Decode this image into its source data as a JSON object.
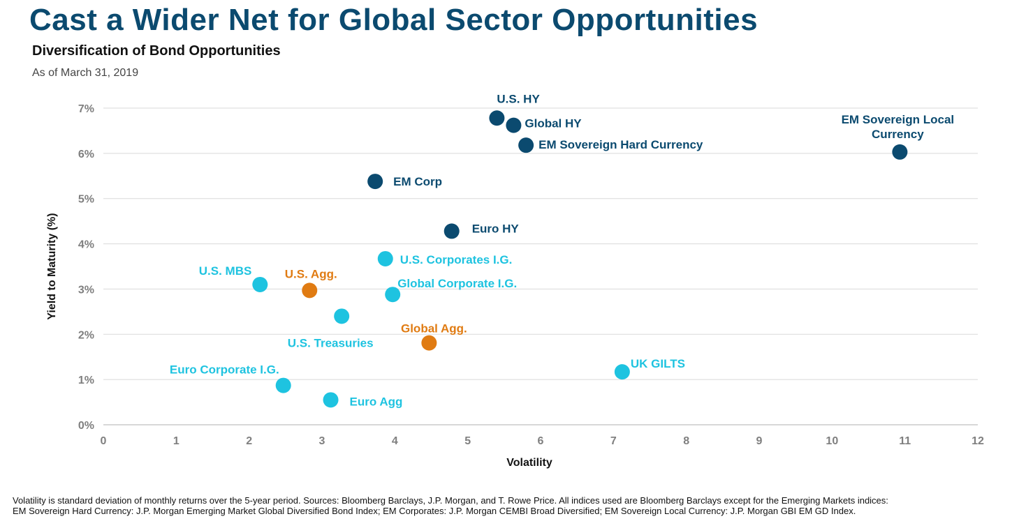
{
  "page": {
    "title": "Cast a Wider Net for Global Sector Opportunities",
    "as_of": "As of March 31, 2019",
    "footnote_line1": "Volatility is standard deviation of monthly returns over the 5-year period. Sources: Bloomberg Barclays, J.P. Morgan, and T. Rowe Price. All indices used are Bloomberg Barclays except for the Emerging Markets indices:",
    "footnote_line2": "EM Sovereign Hard Currency: J.P. Morgan Emerging Market Global Diversified Bond Index; EM Corporates: J.P. Morgan CEMBI Broad Diversified; EM Sovereign Local Currency: J.P. Morgan GBI EM GD Index."
  },
  "colors": {
    "title": "#0b4a6f",
    "dark_navy": "#0b4a6f",
    "cyan": "#1ec3e0",
    "orange": "#e07b12",
    "grid": "#d9d9d9"
  },
  "chart_data": {
    "type": "scatter",
    "title": "Diversification of Bond Opportunities",
    "xlabel": "Volatility",
    "ylabel": "Yield to Maturity (%)",
    "xlim": [
      0,
      12
    ],
    "ylim": [
      0,
      7
    ],
    "x_ticks": [
      0,
      1,
      2,
      3,
      4,
      5,
      6,
      7,
      8,
      9,
      10,
      11,
      12
    ],
    "y_ticks": [
      "0%",
      "1%",
      "2%",
      "3%",
      "4%",
      "5%",
      "6%",
      "7%"
    ],
    "grid": "horizontal",
    "points": [
      {
        "label": "U.S. HY",
        "x": 5.4,
        "y": 6.78,
        "color": "dark_navy"
      },
      {
        "label": "Global HY",
        "x": 5.63,
        "y": 6.62,
        "color": "dark_navy"
      },
      {
        "label": "EM Sovereign Hard Currency",
        "x": 5.8,
        "y": 6.18,
        "color": "dark_navy"
      },
      {
        "label": "EM Sovereign Local Currency",
        "x": 10.93,
        "y": 6.03,
        "color": "dark_navy"
      },
      {
        "label": "EM Corp",
        "x": 3.73,
        "y": 5.38,
        "color": "dark_navy"
      },
      {
        "label": "Euro HY",
        "x": 4.78,
        "y": 4.28,
        "color": "dark_navy"
      },
      {
        "label": "U.S. Corporates I.G.",
        "x": 3.87,
        "y": 3.67,
        "color": "cyan"
      },
      {
        "label": "U.S. MBS",
        "x": 2.15,
        "y": 3.1,
        "color": "cyan"
      },
      {
        "label": "U.S. Agg.",
        "x": 2.83,
        "y": 2.97,
        "color": "orange"
      },
      {
        "label": "Global Corporate I.G.",
        "x": 3.97,
        "y": 2.88,
        "color": "cyan"
      },
      {
        "label": "U.S. Treasuries",
        "x": 3.27,
        "y": 2.4,
        "color": "cyan"
      },
      {
        "label": "Global Agg.",
        "x": 4.47,
        "y": 1.81,
        "color": "orange"
      },
      {
        "label": "UK GILTS",
        "x": 7.12,
        "y": 1.17,
        "color": "cyan"
      },
      {
        "label": "Euro Corporate I.G.",
        "x": 2.47,
        "y": 0.87,
        "color": "cyan"
      },
      {
        "label": "Euro Agg",
        "x": 3.12,
        "y": 0.55,
        "color": "cyan"
      }
    ]
  }
}
